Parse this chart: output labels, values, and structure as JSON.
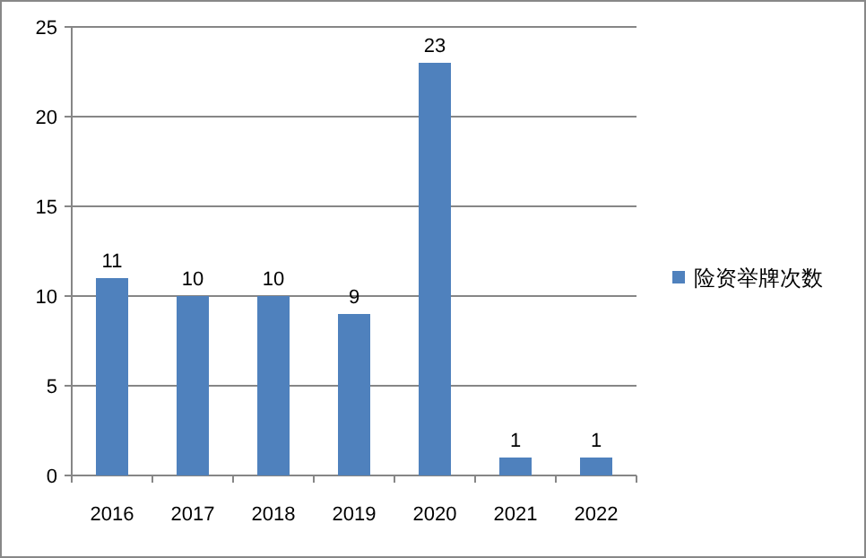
{
  "chart_data": {
    "type": "bar",
    "categories": [
      "2016",
      "2017",
      "2018",
      "2019",
      "2020",
      "2021",
      "2022"
    ],
    "series": [
      {
        "name": "险资举牌次数",
        "color": "#4f81bd",
        "values": [
          11,
          10,
          10,
          9,
          23,
          1,
          1
        ]
      }
    ],
    "ylim": [
      0,
      25
    ],
    "yticks": [
      0,
      5,
      10,
      15,
      20,
      25
    ],
    "grid": "y",
    "legend": "right",
    "data_labels": true
  }
}
